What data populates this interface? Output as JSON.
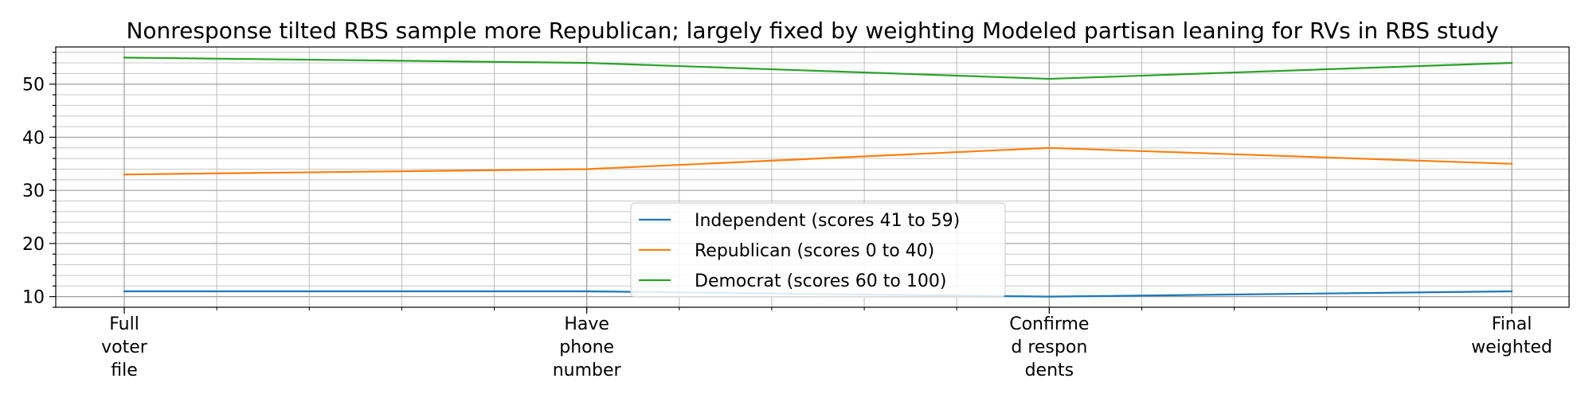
{
  "chart_data": {
    "type": "line",
    "title": "Nonresponse tilted RBS sample more Republican; largely fixed by weighting Modeled partisan leaning for RVs in RBS study",
    "xlabel": "",
    "ylabel": "",
    "categories": [
      [
        "Full",
        "voter",
        "file"
      ],
      [
        "Have",
        "phone",
        "number"
      ],
      [
        "Confirme",
        "d respon",
        "dents"
      ],
      [
        "Final",
        "weighted"
      ]
    ],
    "series": [
      {
        "name": "Independent (scores 41 to 59)",
        "color": "#1f77b4",
        "values": [
          11,
          11,
          10,
          11
        ]
      },
      {
        "name": "Republican (scores 0 to 40)",
        "color": "#ff7f0e",
        "values": [
          33,
          34,
          38,
          35
        ]
      },
      {
        "name": "Democrat (scores 60 to 100)",
        "color": "#2ca02c",
        "values": [
          55,
          54,
          51,
          54
        ]
      }
    ],
    "ylim": [
      8,
      57
    ],
    "yticks": [
      10,
      20,
      30,
      40,
      50
    ],
    "grid": true,
    "minor_grid": true,
    "legend": "lower-center"
  }
}
